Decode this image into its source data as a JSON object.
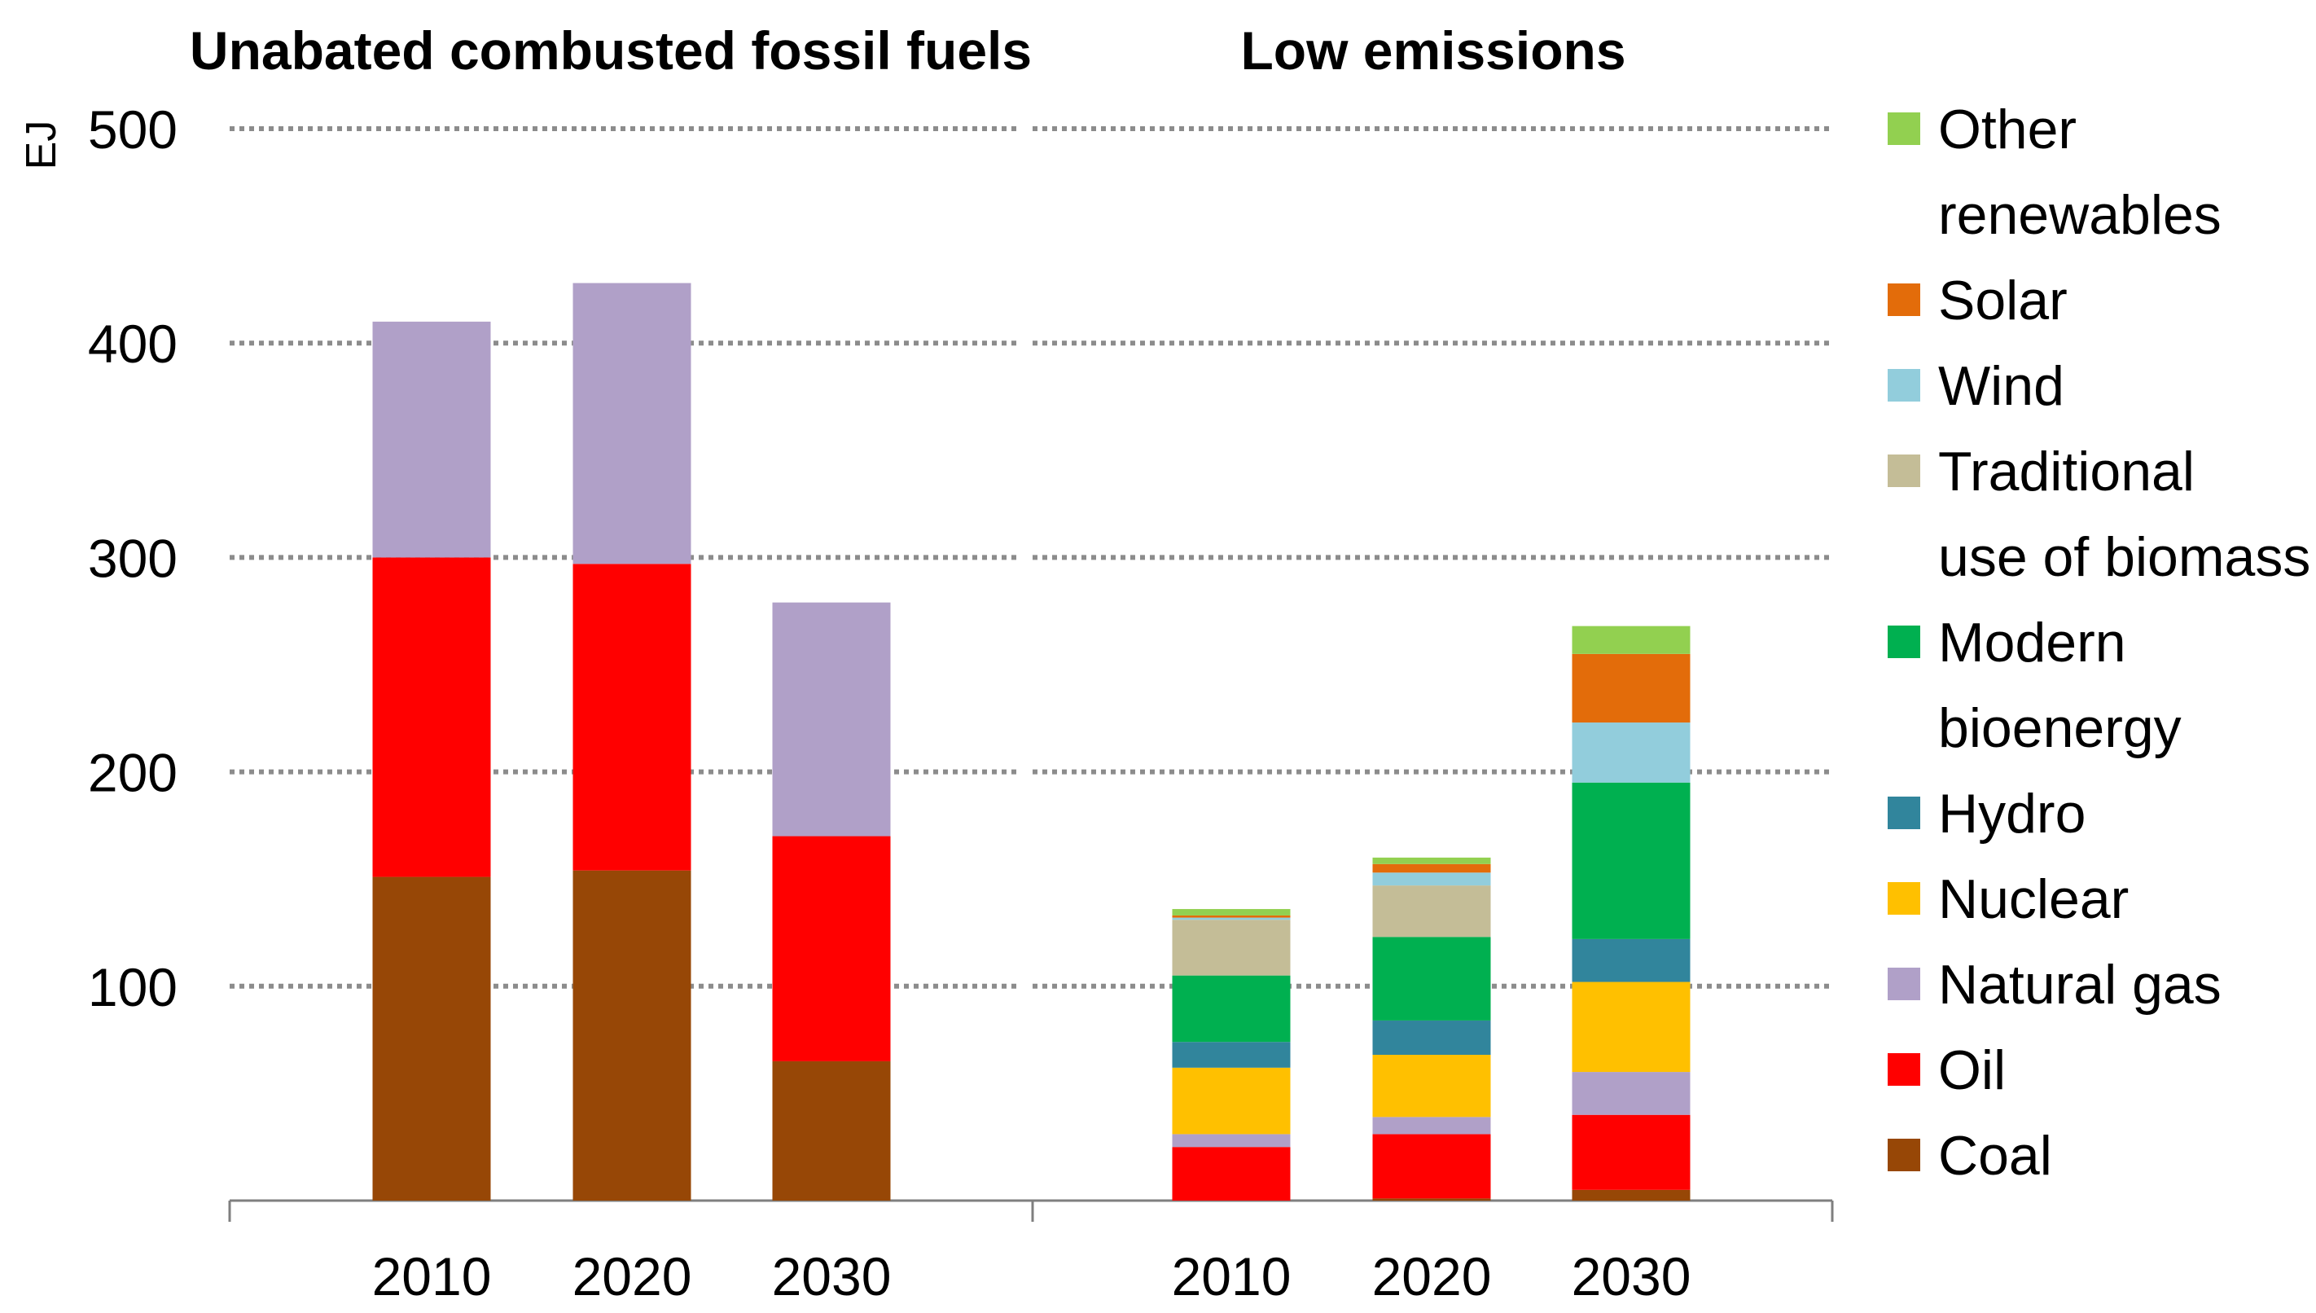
{
  "chart_data": {
    "type": "bar",
    "stacked": true,
    "ylabel": "EJ",
    "ylim": [
      0,
      500
    ],
    "yticks": [
      100,
      200,
      300,
      400,
      500
    ],
    "grid": "dotted horizontal",
    "legend_position": "right",
    "series_colors": {
      "Coal": "#974706",
      "Oil": "#ff0000",
      "Natural gas": "#b0a0c8",
      "Nuclear": "#ffc000",
      "Hydro": "#31859c",
      "Modern bioenergy": "#00b050",
      "Traditional use of biomass": "#c4bd97",
      "Wind": "#92cddc",
      "Solar": "#e36c0a",
      "Other renewables": "#92d050"
    },
    "legend": [
      {
        "name": "Other renewables",
        "lines": [
          "Other",
          "renewables"
        ]
      },
      {
        "name": "Solar",
        "lines": [
          "Solar"
        ]
      },
      {
        "name": "Wind",
        "lines": [
          "Wind"
        ]
      },
      {
        "name": "Traditional use of biomass",
        "lines": [
          "Traditional",
          "use of biomass"
        ]
      },
      {
        "name": "Modern bioenergy",
        "lines": [
          "Modern",
          "bioenergy"
        ]
      },
      {
        "name": "Hydro",
        "lines": [
          "Hydro"
        ]
      },
      {
        "name": "Nuclear",
        "lines": [
          "Nuclear"
        ]
      },
      {
        "name": "Natural gas",
        "lines": [
          "Natural gas"
        ]
      },
      {
        "name": "Oil",
        "lines": [
          "Oil"
        ]
      },
      {
        "name": "Coal",
        "lines": [
          "Coal"
        ]
      }
    ],
    "panels": [
      {
        "title": "Unabated combusted fossil fuels",
        "categories": [
          "2010",
          "2020",
          "2030"
        ],
        "series": [
          {
            "name": "Coal",
            "values": [
              151,
              154,
              65
            ]
          },
          {
            "name": "Oil",
            "values": [
              149,
              143,
              105
            ]
          },
          {
            "name": "Natural gas",
            "values": [
              110,
              131,
              109
            ]
          }
        ]
      },
      {
        "title": "Low emissions",
        "categories": [
          "2010",
          "2020",
          "2030"
        ],
        "series": [
          {
            "name": "Coal",
            "values": [
              0,
              1,
              5
            ]
          },
          {
            "name": "Oil",
            "values": [
              25,
              30,
              35
            ]
          },
          {
            "name": "Natural gas",
            "values": [
              6,
              8,
              20
            ]
          },
          {
            "name": "Nuclear",
            "values": [
              31,
              29,
              42
            ]
          },
          {
            "name": "Hydro",
            "values": [
              12,
              16,
              20
            ]
          },
          {
            "name": "Modern bioenergy",
            "values": [
              31,
              39,
              73
            ]
          },
          {
            "name": "Traditional use of biomass",
            "values": [
              26,
              24,
              0
            ]
          },
          {
            "name": "Wind",
            "values": [
              1,
              6,
              28
            ]
          },
          {
            "name": "Solar",
            "values": [
              1,
              4,
              32
            ]
          },
          {
            "name": "Other renewables",
            "values": [
              3,
              3,
              13
            ]
          }
        ]
      }
    ]
  }
}
